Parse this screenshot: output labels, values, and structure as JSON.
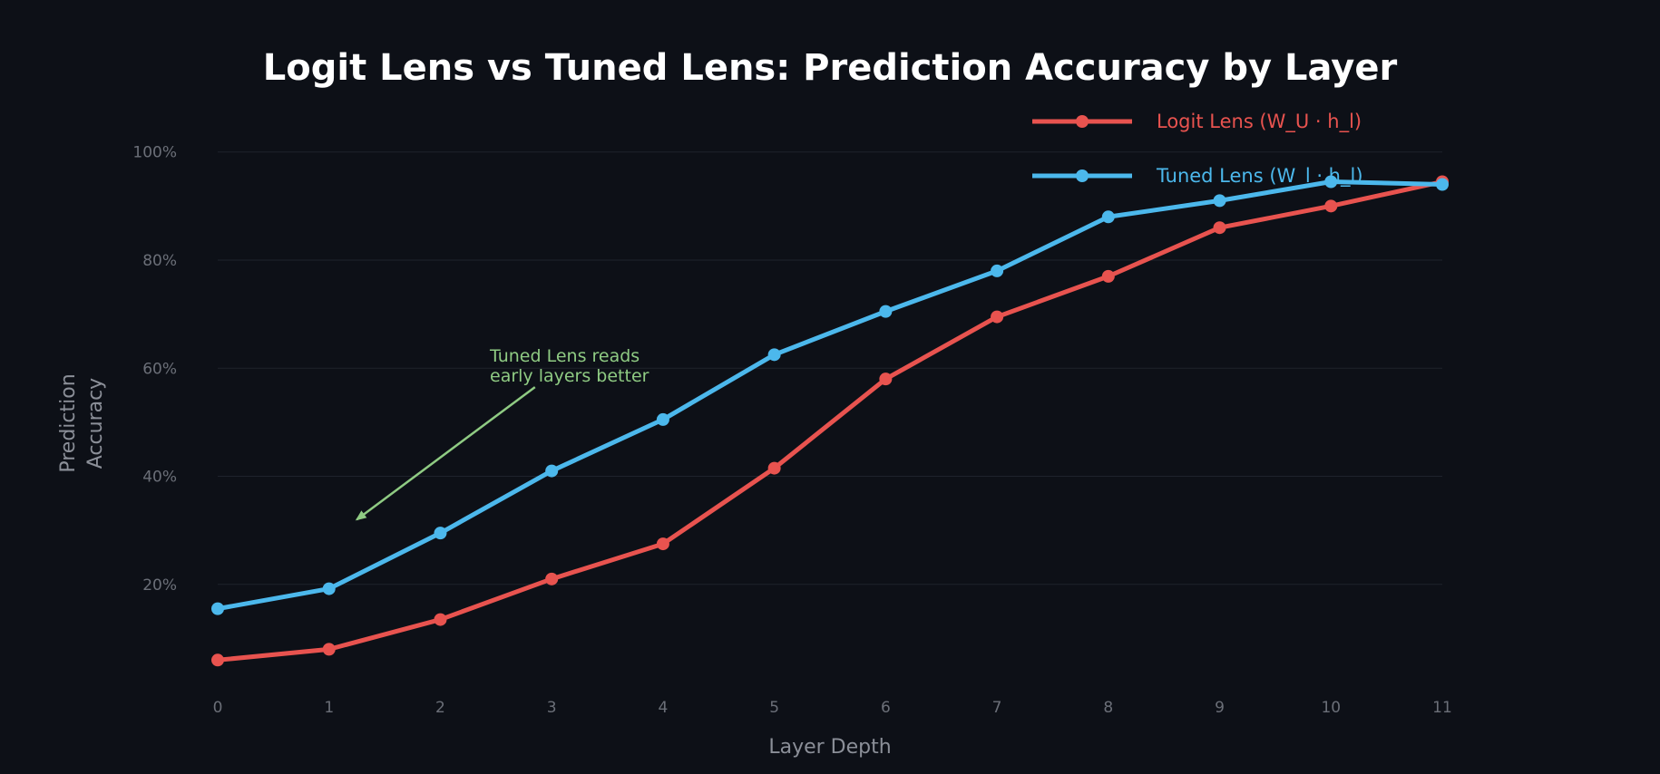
{
  "colors": {
    "background": "#0d1017",
    "title": "#ffffff",
    "grid": "#1e232c",
    "tick": "#6b6f78",
    "axis_label": "#8b8f98",
    "annotation": "#8fcb83"
  },
  "chart_data": {
    "type": "line",
    "title": "Logit Lens vs Tuned Lens: Prediction Accuracy by Layer",
    "xlabel": "Layer Depth",
    "ylabel_lines": [
      "Prediction",
      "Accuracy"
    ],
    "x": [
      0,
      1,
      2,
      3,
      4,
      5,
      6,
      7,
      8,
      9,
      10,
      11
    ],
    "xlim": [
      0,
      11
    ],
    "ylim": [
      -2,
      108
    ],
    "y_ticks": [
      20,
      40,
      60,
      80,
      100
    ],
    "y_tick_labels": [
      "20%",
      "40%",
      "60%",
      "80%",
      "100%"
    ],
    "grid": "horizontal",
    "legend_placement": "top-right",
    "series": [
      {
        "name": "Logit Lens (W_U · h_l)",
        "color": "#e8534f",
        "values": [
          6,
          8,
          13.5,
          21,
          27.5,
          41.5,
          58,
          69.5,
          77,
          86,
          90,
          94.5
        ]
      },
      {
        "name": "Tuned Lens (W_l · h_l)",
        "color": "#4cb8ec",
        "values": [
          15.5,
          19.2,
          29.5,
          41,
          50.5,
          62.5,
          70.5,
          78,
          88,
          91,
          94.5,
          94
        ]
      }
    ],
    "annotation": {
      "lines": [
        "Tuned Lens reads",
        "early layers better"
      ],
      "arrow_from": [
        2.85,
        56.5
      ],
      "arrow_to": [
        1.25,
        32
      ]
    }
  }
}
